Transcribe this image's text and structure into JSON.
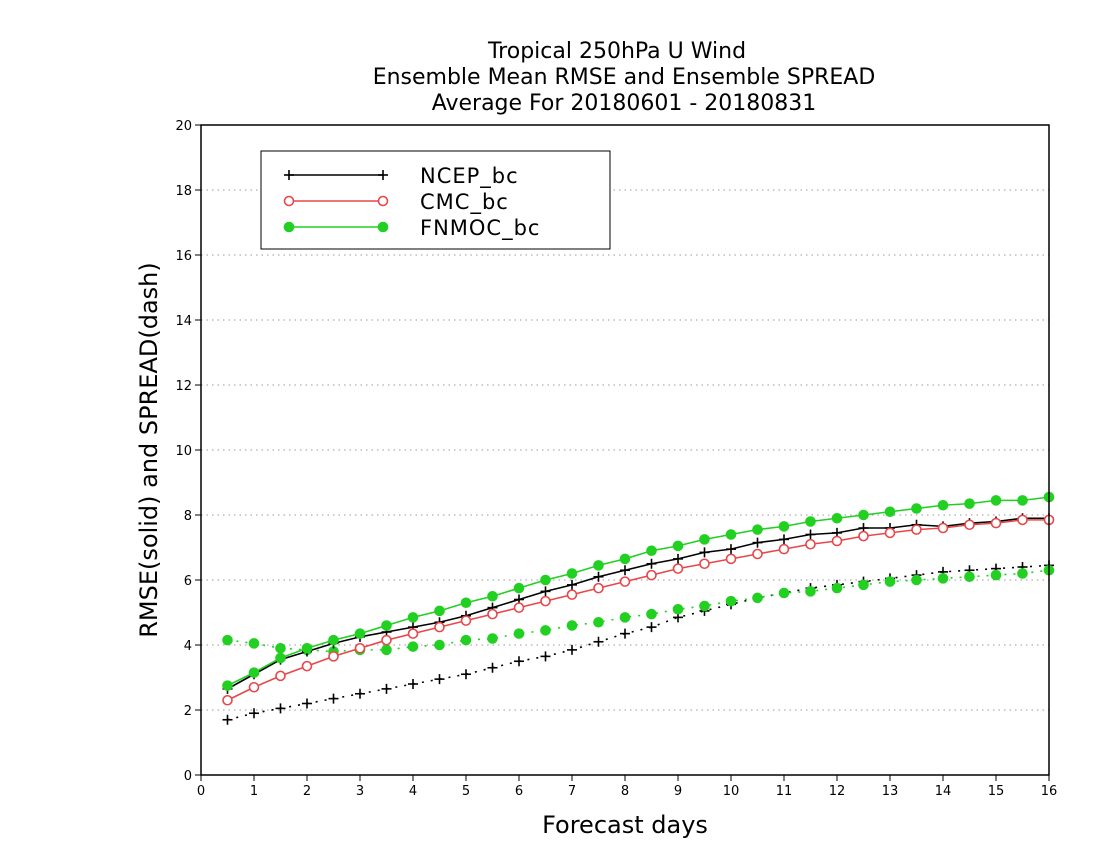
{
  "chart_data": {
    "type": "line",
    "title_lines": [
      "Tropical 250hPa U Wind",
      "Ensemble Mean RMSE and Ensemble SPREAD",
      "Average For 20180601 - 20180831"
    ],
    "xlabel": "Forecast days",
    "ylabel": "RMSE(solid) and SPREAD(dash)",
    "xlim": [
      0,
      16
    ],
    "ylim": [
      0,
      20
    ],
    "xticks": [
      "0",
      "1",
      "2",
      "3",
      "4",
      "5",
      "6",
      "7",
      "8",
      "9",
      "10",
      "11",
      "12",
      "13",
      "14",
      "15",
      "16"
    ],
    "yticks": [
      "0",
      "2",
      "4",
      "6",
      "8",
      "10",
      "12",
      "14",
      "16",
      "18",
      "20"
    ],
    "grid": true,
    "legend_position": "top-left",
    "x": [
      0.5,
      1,
      1.5,
      2,
      2.5,
      3,
      3.5,
      4,
      4.5,
      5,
      5.5,
      6,
      6.5,
      7,
      7.5,
      8,
      8.5,
      9,
      9.5,
      10,
      10.5,
      11,
      11.5,
      12,
      12.5,
      13,
      13.5,
      14,
      14.5,
      15,
      15.5,
      16
    ],
    "series": [
      {
        "name": "NCEP_bc",
        "color": "#000000",
        "marker": "plus",
        "rmse": [
          2.65,
          3.1,
          3.55,
          3.8,
          4.05,
          4.25,
          4.4,
          4.55,
          4.7,
          4.9,
          5.15,
          5.4,
          5.65,
          5.85,
          6.1,
          6.3,
          6.5,
          6.65,
          6.85,
          6.95,
          7.15,
          7.25,
          7.4,
          7.45,
          7.6,
          7.6,
          7.7,
          7.65,
          7.75,
          7.8,
          7.9,
          7.9
        ],
        "spread": [
          1.7,
          1.9,
          2.05,
          2.2,
          2.35,
          2.5,
          2.65,
          2.8,
          2.95,
          3.1,
          3.3,
          3.5,
          3.65,
          3.85,
          4.1,
          4.35,
          4.55,
          4.85,
          5.05,
          5.25,
          5.45,
          5.6,
          5.75,
          5.85,
          5.95,
          6.05,
          6.15,
          6.25,
          6.3,
          6.35,
          6.4,
          6.45
        ]
      },
      {
        "name": "CMC_bc",
        "color": "#e8474a",
        "marker": "open-circle",
        "rmse": [
          2.3,
          2.7,
          3.05,
          3.35,
          3.65,
          3.9,
          4.15,
          4.35,
          4.55,
          4.75,
          4.95,
          5.15,
          5.35,
          5.55,
          5.75,
          5.95,
          6.15,
          6.35,
          6.5,
          6.65,
          6.8,
          6.95,
          7.1,
          7.2,
          7.35,
          7.45,
          7.55,
          7.6,
          7.7,
          7.75,
          7.85,
          7.85
        ]
      },
      {
        "name": "FNMOC_bc",
        "color": "#22d022",
        "marker": "filled-circle",
        "rmse": [
          2.75,
          3.15,
          3.6,
          3.9,
          4.15,
          4.35,
          4.6,
          4.85,
          5.05,
          5.3,
          5.5,
          5.75,
          6.0,
          6.2,
          6.45,
          6.65,
          6.9,
          7.05,
          7.25,
          7.4,
          7.55,
          7.65,
          7.8,
          7.9,
          8.0,
          8.1,
          8.2,
          8.3,
          8.35,
          8.45,
          8.45,
          8.55
        ],
        "spread": [
          4.15,
          4.05,
          3.9,
          3.85,
          3.8,
          3.85,
          3.85,
          3.95,
          4.0,
          4.15,
          4.2,
          4.35,
          4.45,
          4.6,
          4.7,
          4.85,
          4.95,
          5.1,
          5.2,
          5.35,
          5.45,
          5.6,
          5.65,
          5.75,
          5.85,
          5.95,
          6.0,
          6.05,
          6.1,
          6.15,
          6.2,
          6.3
        ]
      }
    ]
  }
}
